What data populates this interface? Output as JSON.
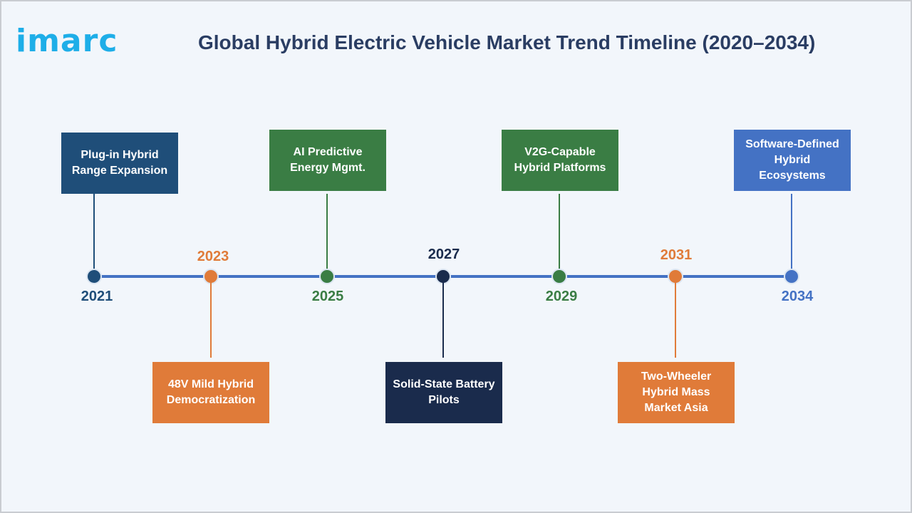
{
  "logo": "imarc",
  "title": "Global Hybrid Electric Vehicle Market Trend Timeline (2020–2034)",
  "colors": {
    "navy": "#1f4e79",
    "orange": "#e07b39",
    "green": "#3a7d44",
    "dark_navy": "#1a2b4c",
    "blue": "#4472c4"
  },
  "milestones": [
    {
      "year": "2021",
      "label": "Plug-in Hybrid Range Expansion",
      "color": "#1f4e79"
    },
    {
      "year": "2023",
      "label": "48V Mild Hybrid Democratization",
      "color": "#e07b39"
    },
    {
      "year": "2025",
      "label": "AI Predictive Energy Mgmt.",
      "color": "#3a7d44"
    },
    {
      "year": "2027",
      "label": "Solid-State Battery Pilots",
      "color": "#1a2b4c"
    },
    {
      "year": "2029",
      "label": "V2G-Capable Hybrid Platforms",
      "color": "#3a7d44"
    },
    {
      "year": "2031",
      "label": "Two-Wheeler Hybrid Mass Market Asia",
      "color": "#e07b39"
    },
    {
      "year": "2034",
      "label": "Software-Defined Hybrid Ecosystems",
      "color": "#4472c4"
    }
  ]
}
